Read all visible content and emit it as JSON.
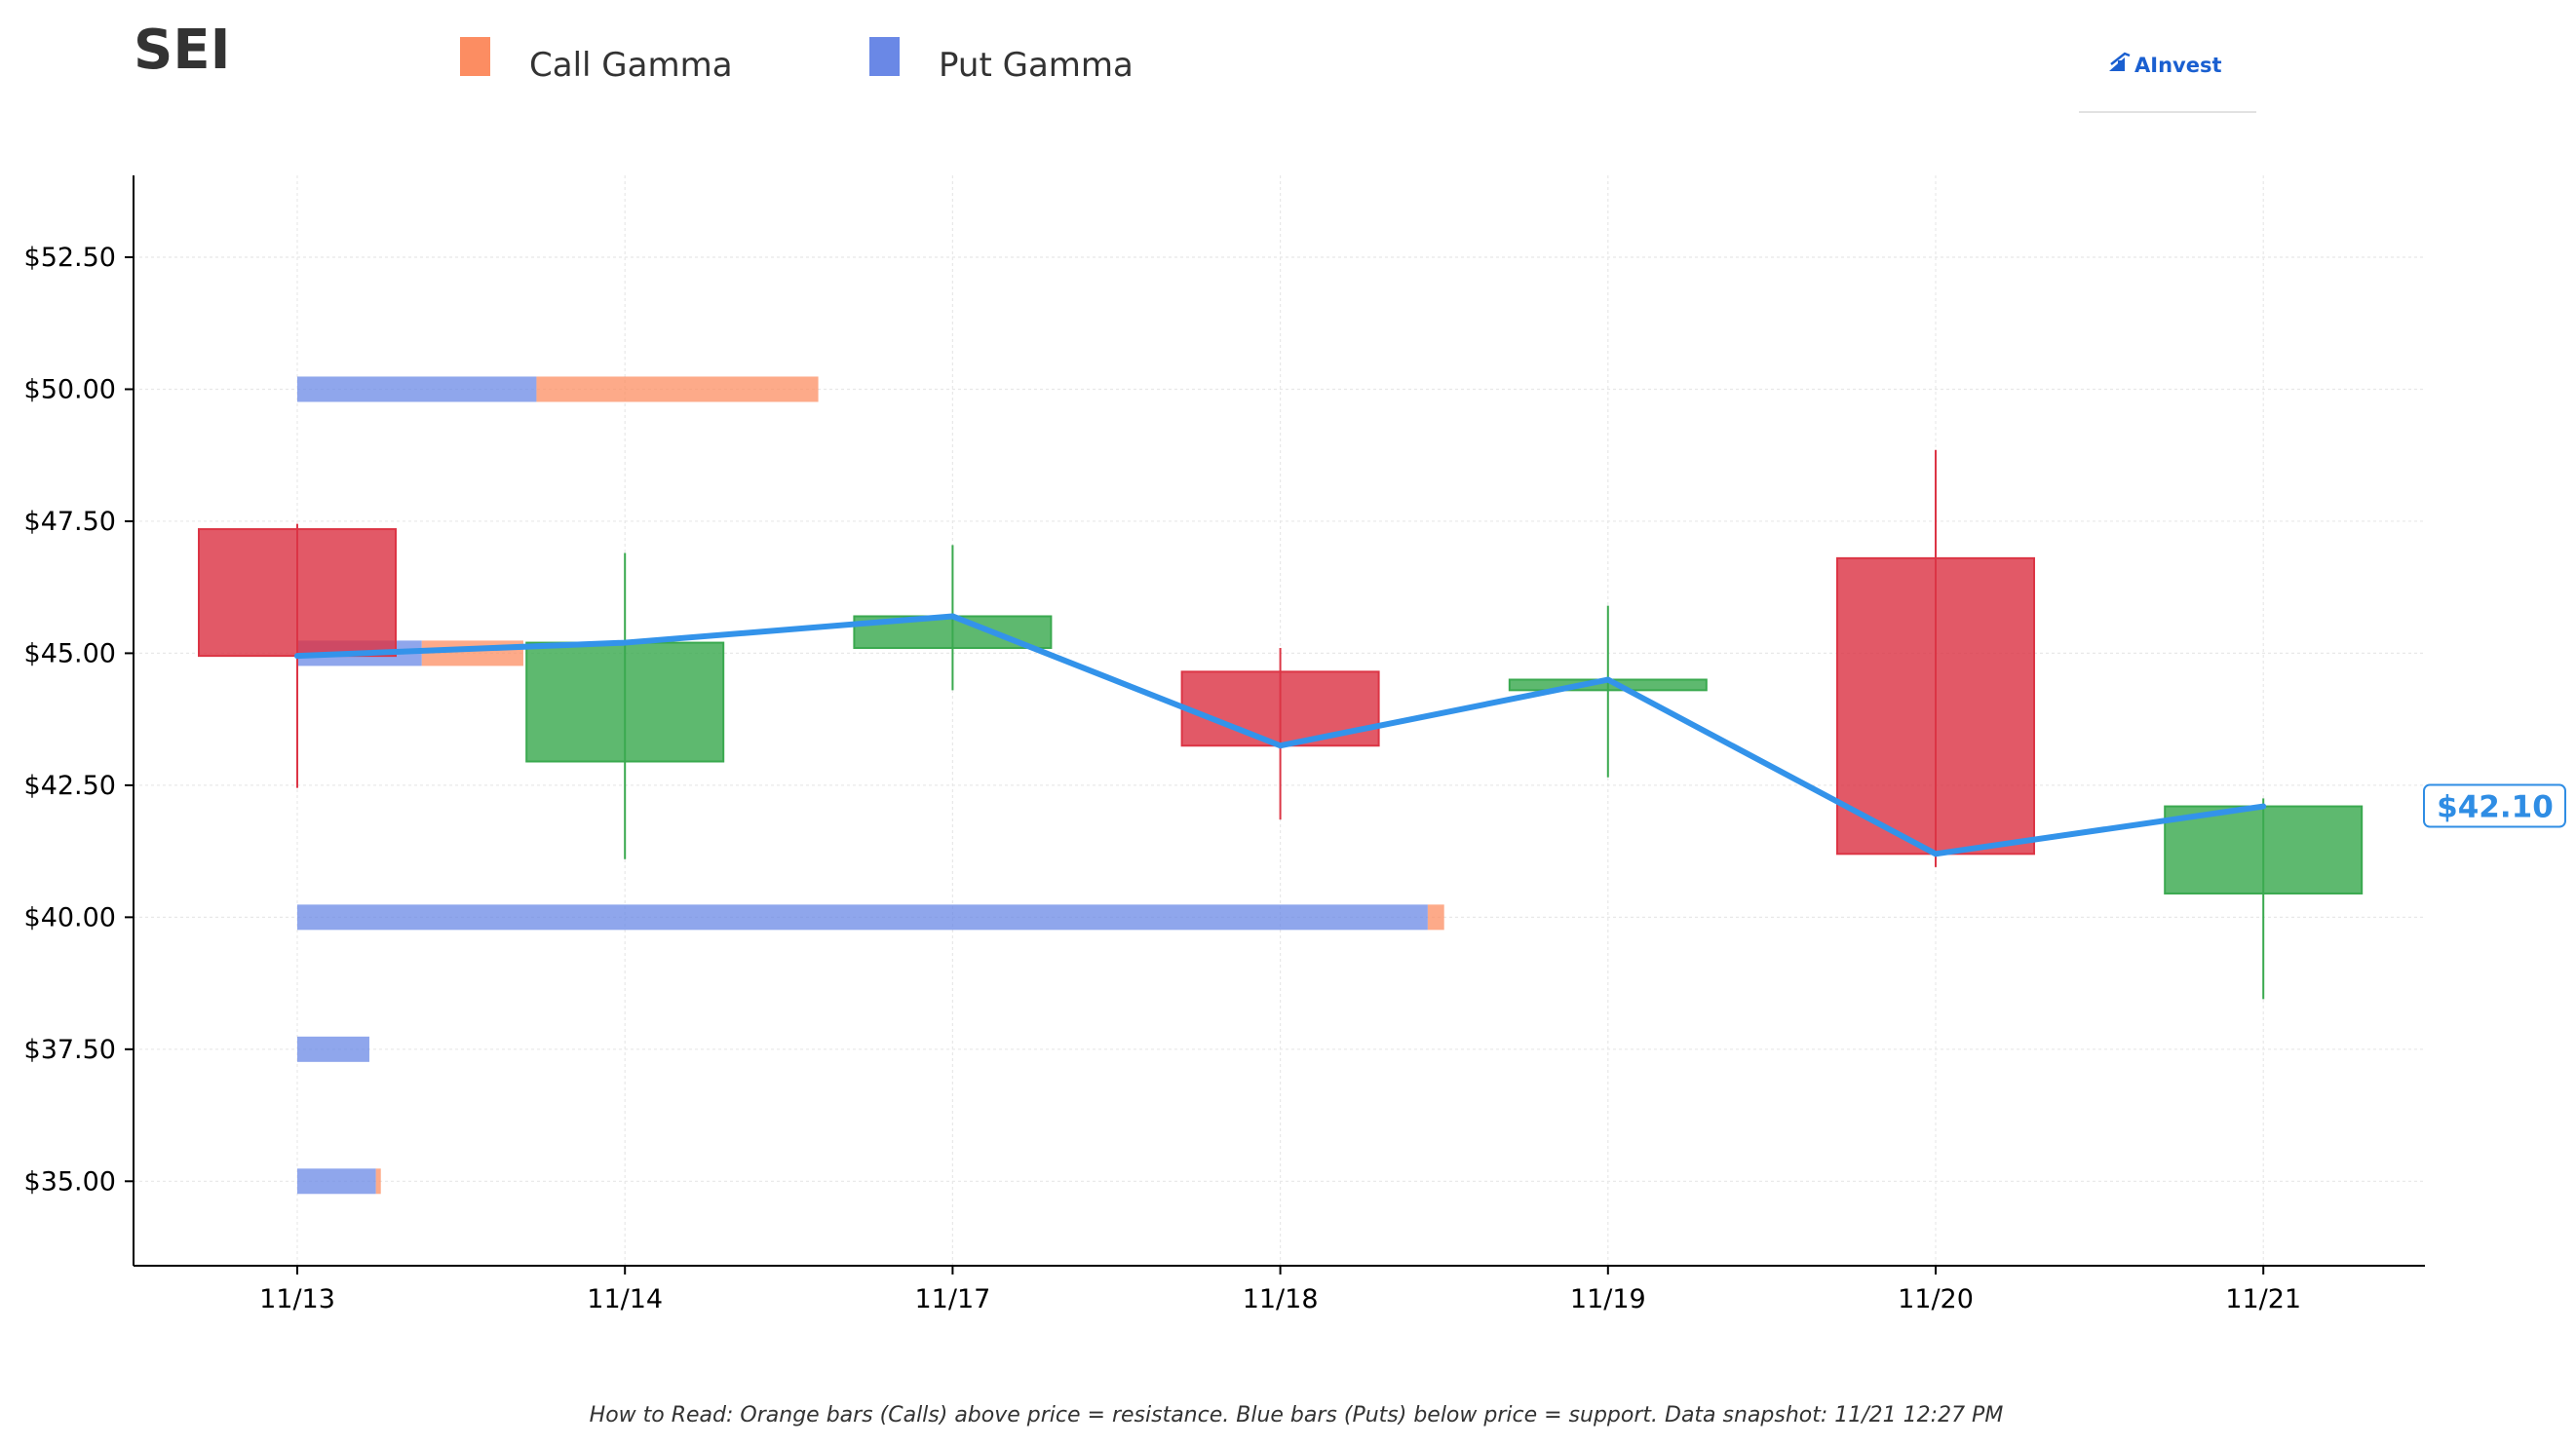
{
  "title": "SEI",
  "legend": [
    {
      "label": "Call Gamma",
      "color": "#fc8d62"
    },
    {
      "label": "Put Gamma",
      "color": "#6a88e6"
    }
  ],
  "brand": {
    "name": "AInvest",
    "icon": "ainvest-logo-icon"
  },
  "footnote": "How to Read: Orange bars (Calls) above price = resistance. Blue bars (Puts) below price = support. Data snapshot: 11/21 12:27 PM",
  "price_tag": "$42.10",
  "colors": {
    "up": "#3aa94f",
    "down": "#dc3545",
    "line": "#3393ea",
    "call": "#fc8d62",
    "put": "#6a88e6",
    "grid": "#e8e8e8"
  },
  "chart_data": {
    "type": "candlestick",
    "categories": [
      "11/13",
      "11/14",
      "11/17",
      "11/18",
      "11/19",
      "11/20",
      "11/21"
    ],
    "ylim": [
      33.4,
      54.05
    ],
    "yticks": [
      35.0,
      37.5,
      40.0,
      42.5,
      45.0,
      47.5,
      50.0,
      52.5
    ],
    "ytick_labels": [
      "$35.00",
      "$37.50",
      "$40.00",
      "$42.50",
      "$45.00",
      "$47.50",
      "$50.00",
      "$52.50"
    ],
    "grid": true,
    "ohlc": [
      {
        "date": "11/13",
        "open": 47.35,
        "high": 47.45,
        "low": 42.45,
        "close": 44.95
      },
      {
        "date": "11/14",
        "open": 42.95,
        "high": 46.9,
        "low": 41.1,
        "close": 45.2
      },
      {
        "date": "11/17",
        "open": 45.1,
        "high": 47.05,
        "low": 44.3,
        "close": 45.7
      },
      {
        "date": "11/18",
        "open": 44.65,
        "high": 45.1,
        "low": 41.85,
        "close": 43.25
      },
      {
        "date": "11/19",
        "open": 44.3,
        "high": 45.9,
        "low": 42.65,
        "close": 44.5
      },
      {
        "date": "11/20",
        "open": 46.8,
        "high": 48.85,
        "low": 40.95,
        "close": 41.2
      },
      {
        "date": "11/21",
        "open": 40.45,
        "high": 42.25,
        "low": 38.45,
        "close": 42.1
      }
    ],
    "close_line": [
      44.95,
      45.2,
      45.7,
      43.25,
      44.5,
      41.2,
      42.1
    ],
    "gamma_levels": [
      {
        "price": 50.0,
        "put": 0.73,
        "call": 0.86
      },
      {
        "price": 45.0,
        "put": 0.38,
        "call": 0.31
      },
      {
        "price": 40.0,
        "put": 3.45,
        "call": 0.05
      },
      {
        "price": 37.5,
        "put": 0.22,
        "call": 0.0
      },
      {
        "price": 35.0,
        "put": 0.24,
        "call": 0.015
      }
    ],
    "last_price": 42.1
  }
}
